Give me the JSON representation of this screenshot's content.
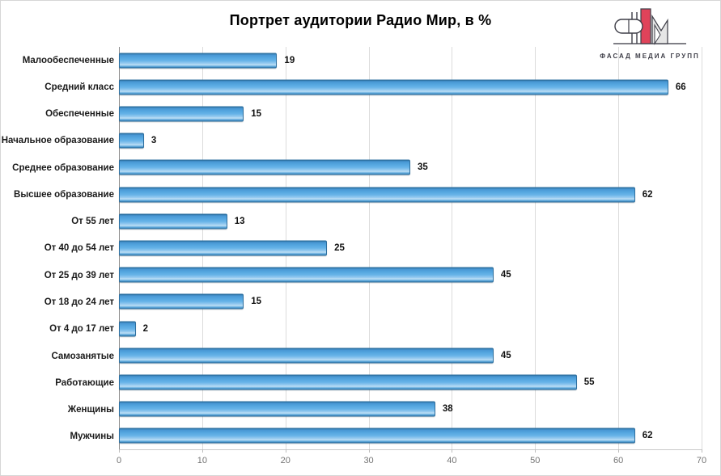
{
  "title": "Портрет аудитории Радио Мир, в %",
  "logo": {
    "text": "ФАСАД МЕДИА ГРУПП"
  },
  "chart_data": {
    "type": "bar",
    "orientation": "horizontal",
    "title": "Портрет аудитории Радио Мир, в %",
    "categories": [
      "Малообеспеченные",
      "Средний класс",
      "Обеспеченные",
      "Начальное образование",
      "Среднее образование",
      "Высшее образование",
      "От 55 лет",
      "От 40 до 54 лет",
      "От 25 до 39 лет",
      "От 18 до 24 лет",
      "От 4 до 17 лет",
      "Самозанятые",
      "Работающие",
      "Женщины",
      "Мужчины"
    ],
    "values": [
      19,
      66,
      15,
      3,
      35,
      62,
      13,
      25,
      45,
      15,
      2,
      45,
      55,
      38,
      62
    ],
    "xlim": [
      0,
      70
    ],
    "x_ticks": [
      0,
      10,
      20,
      30,
      40,
      50,
      60,
      70
    ],
    "xlabel": "",
    "ylabel": "",
    "grid": true,
    "legend": false,
    "data_labels": true
  },
  "colors": {
    "bar_fill": "#55a7e0",
    "bar_border": "#2e6f9f",
    "gridline": "#dcdcdc",
    "axis_line": "#8c8c8c",
    "tick_text": "#737373",
    "label_text": "#1a1a1a",
    "logo_red": "#e0435a",
    "logo_gray": "#e6e6e6",
    "logo_outline": "#3d3d47"
  }
}
